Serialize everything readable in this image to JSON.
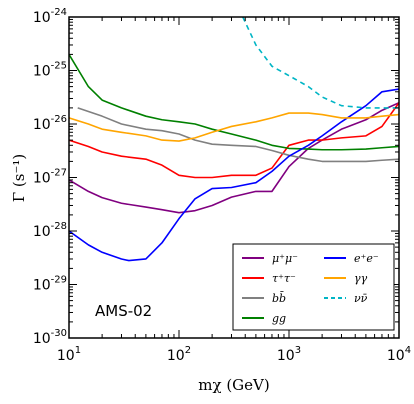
{
  "chart_data": {
    "type": "line",
    "xlabel": "mχ (GeV)",
    "ylabel": "Γ (s⁻¹)",
    "xscale": "log",
    "yscale": "log",
    "xlim": [
      10,
      10000
    ],
    "ylim": [
      1e-30,
      1e-24
    ],
    "xticks": [
      {
        "value": 10,
        "base": "10",
        "exp": "1"
      },
      {
        "value": 100,
        "base": "10",
        "exp": "2"
      },
      {
        "value": 1000,
        "base": "10",
        "exp": "3"
      },
      {
        "value": 10000,
        "base": "10",
        "exp": "4"
      }
    ],
    "yticks": [
      {
        "value": 1e-30,
        "base": "10",
        "exp": "-30"
      },
      {
        "value": 1e-29,
        "base": "10",
        "exp": "-29"
      },
      {
        "value": 1e-28,
        "base": "10",
        "exp": "-28"
      },
      {
        "value": 1e-27,
        "base": "10",
        "exp": "-27"
      },
      {
        "value": 1e-26,
        "base": "10",
        "exp": "-26"
      },
      {
        "value": 1e-25,
        "base": "10",
        "exp": "-25"
      },
      {
        "value": 1e-24,
        "base": "10",
        "exp": "-24"
      }
    ],
    "annotation": "AMS-02",
    "legend_position": "lower-right",
    "series": [
      {
        "name": "μ⁺μ⁻",
        "color": "#800080",
        "dash": false,
        "x": [
          10,
          15,
          20,
          30,
          50,
          70,
          100,
          140,
          200,
          300,
          500,
          700,
          1000,
          1500,
          2000,
          3000,
          5000,
          7000,
          10000
        ],
        "y": [
          9e-28,
          5.5e-28,
          4.2e-28,
          3.3e-28,
          2.8e-28,
          2.5e-28,
          2.2e-28,
          2.4e-28,
          3e-28,
          4.3e-28,
          5.5e-28,
          5.5e-28,
          1.6e-27,
          3.5e-27,
          5e-27,
          8e-27,
          1.2e-26,
          1.8e-26,
          2.5e-26
        ]
      },
      {
        "name": "τ⁺τ⁻",
        "color": "#ff0000",
        "dash": false,
        "x": [
          10,
          15,
          20,
          30,
          50,
          70,
          100,
          140,
          200,
          300,
          500,
          700,
          1000,
          1500,
          2000,
          3000,
          5000,
          7000,
          10000
        ],
        "y": [
          5e-27,
          3.8e-27,
          3e-27,
          2.5e-27,
          2.2e-27,
          1.7e-27,
          1.1e-27,
          1e-27,
          1e-27,
          1.1e-27,
          1.1e-27,
          1.5e-27,
          4e-27,
          5e-27,
          5e-27,
          5.5e-27,
          6e-27,
          9e-27,
          2.5e-26
        ]
      },
      {
        "name": "bb̄",
        "color": "#808080",
        "dash": false,
        "x": [
          12,
          20,
          30,
          50,
          70,
          100,
          140,
          200,
          300,
          500,
          700,
          1000,
          1500,
          2000,
          3000,
          5000,
          7000,
          10000
        ],
        "y": [
          2e-26,
          1.4e-26,
          1e-26,
          8e-27,
          7.5e-27,
          6.5e-27,
          5e-27,
          4.2e-27,
          4e-27,
          3.8e-27,
          3.2e-27,
          2.6e-27,
          2.2e-27,
          2e-27,
          2e-27,
          2e-27,
          2.1e-27,
          2.2e-27
        ]
      },
      {
        "name": "gg",
        "color": "#008000",
        "dash": false,
        "x": [
          10,
          15,
          20,
          30,
          50,
          70,
          100,
          140,
          200,
          300,
          500,
          700,
          1000,
          1500,
          2000,
          3000,
          5000,
          7000,
          10000
        ],
        "y": [
          2e-25,
          5e-26,
          2.8e-26,
          2e-26,
          1.4e-26,
          1.2e-26,
          1.1e-26,
          1e-26,
          8e-27,
          6.5e-27,
          5e-27,
          4e-27,
          3.5e-27,
          3.4e-27,
          3.3e-27,
          3.3e-27,
          3.4e-27,
          3.6e-27,
          3.8e-27
        ]
      },
      {
        "name": "e⁺e⁻",
        "color": "#0000ff",
        "dash": false,
        "x": [
          10,
          15,
          20,
          30,
          35,
          50,
          70,
          100,
          140,
          200,
          300,
          500,
          700,
          1000,
          1500,
          2000,
          3000,
          5000,
          7000,
          10000
        ],
        "y": [
          1e-28,
          5.5e-29,
          4e-29,
          3e-29,
          2.8e-29,
          3e-29,
          6e-29,
          1.7e-28,
          4e-28,
          6.2e-28,
          6.5e-28,
          8e-28,
          1.3e-27,
          2.5e-27,
          4e-27,
          6e-27,
          1.1e-26,
          2.2e-26,
          4e-26,
          4.5e-26
        ]
      },
      {
        "name": "γγ",
        "color": "#ffa500",
        "dash": false,
        "x": [
          10,
          15,
          20,
          30,
          50,
          70,
          100,
          140,
          200,
          300,
          500,
          700,
          1000,
          1500,
          2000,
          3000,
          5000,
          7000,
          10000
        ],
        "y": [
          1.3e-26,
          1e-26,
          8e-27,
          7e-27,
          6e-27,
          5e-27,
          4.8e-27,
          5.5e-27,
          7e-27,
          9e-27,
          1.1e-26,
          1.3e-26,
          1.6e-26,
          1.6e-26,
          1.5e-26,
          1.3e-26,
          1.3e-26,
          1.4e-26,
          1.5e-26
        ]
      },
      {
        "name": "νν̄",
        "color": "#00b5c5",
        "dash": true,
        "x": [
          380,
          500,
          700,
          1000,
          1500,
          2000,
          3000,
          5000,
          7000,
          10000
        ],
        "y": [
          1e-24,
          3e-25,
          1.2e-25,
          8e-26,
          5e-26,
          3.2e-26,
          2.2e-26,
          2e-26,
          2e-26,
          2e-26
        ]
      }
    ]
  }
}
